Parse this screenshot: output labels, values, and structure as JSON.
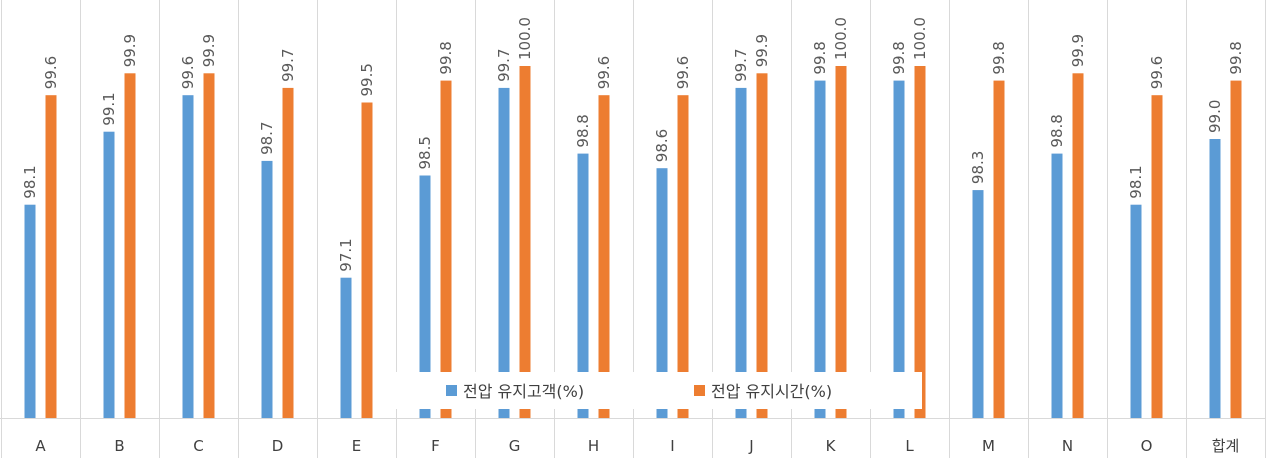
{
  "chart_data": {
    "type": "bar",
    "categories": [
      "A",
      "B",
      "C",
      "D",
      "E",
      "F",
      "G",
      "H",
      "I",
      "J",
      "K",
      "L",
      "M",
      "N",
      "O",
      "합계"
    ],
    "series": [
      {
        "name": "전압 유지고객(%)",
        "color": "#5B9BD5",
        "values": [
          98.1,
          99.1,
          99.6,
          98.7,
          97.1,
          98.5,
          99.7,
          98.8,
          98.6,
          99.7,
          99.8,
          99.8,
          98.3,
          98.8,
          98.1,
          99.0
        ],
        "labels": [
          "98.1",
          "99.1",
          "99.6",
          "98.7",
          "97.1",
          "98.5",
          "99.7",
          "98.8",
          "98.6",
          "99.7",
          "99.8",
          "99.8",
          "98.3",
          "98.8",
          "98.1",
          "99.0"
        ]
      },
      {
        "name": "전압 유지시간(%)",
        "color": "#ED7D31",
        "values": [
          99.6,
          99.9,
          99.9,
          99.7,
          99.5,
          99.8,
          100.0,
          99.6,
          99.6,
          99.9,
          100.0,
          100.0,
          99.8,
          99.9,
          99.6,
          99.8
        ],
        "labels": [
          "99.6",
          "99.9",
          "99.9",
          "99.7",
          "99.5",
          "99.8",
          "100.0",
          "99.6",
          "99.6",
          "99.9",
          "100.0",
          "100.0",
          "99.8",
          "99.9",
          "99.6",
          "99.8"
        ]
      }
    ],
    "grid": "vertical category separators",
    "legend": "bottom-center"
  }
}
